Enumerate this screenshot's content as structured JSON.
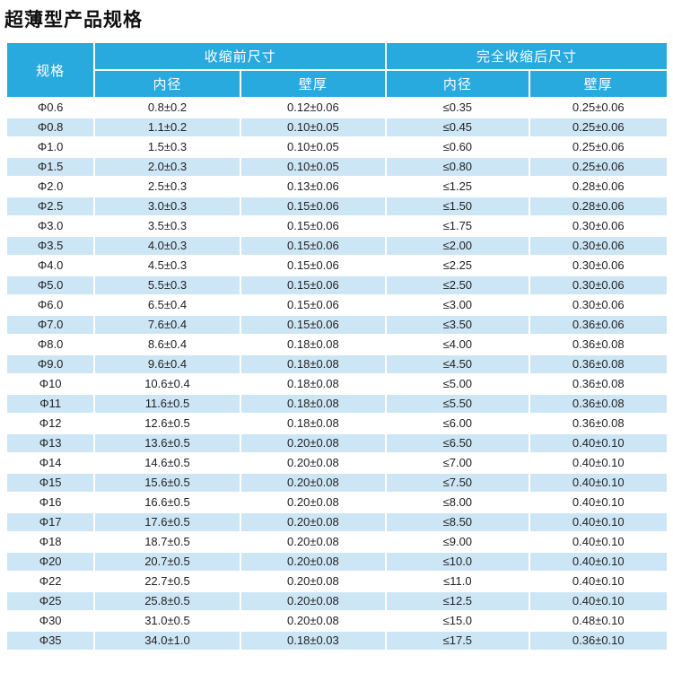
{
  "page_title": "超薄型产品规格",
  "colors": {
    "header_bg": "#29aade",
    "header_text": "#ffffff",
    "row_alt_bg": "#cde6f6",
    "row_bg": "#ffffff",
    "body_text": "#222222",
    "title_text": "#111111"
  },
  "table": {
    "header": {
      "spec": "规格",
      "before_group": "收缩前尺寸",
      "after_group": "完全收缩后尺寸",
      "before_inner_diameter": "内径",
      "before_wall_thickness": "壁厚",
      "after_inner_diameter": "内径",
      "after_wall_thickness": "壁厚"
    },
    "rows": [
      [
        "Φ0.6",
        "0.8±0.2",
        "0.12±0.06",
        "≤0.35",
        "0.25±0.06"
      ],
      [
        "Φ0.8",
        "1.1±0.2",
        "0.10±0.05",
        "≤0.45",
        "0.25±0.06"
      ],
      [
        "Φ1.0",
        "1.5±0.3",
        "0.10±0.05",
        "≤0.60",
        "0.25±0.06"
      ],
      [
        "Φ1.5",
        "2.0±0.3",
        "0.10±0.05",
        "≤0.80",
        "0.25±0.06"
      ],
      [
        "Φ2.0",
        "2.5±0.3",
        "0.13±0.06",
        "≤1.25",
        "0.28±0.06"
      ],
      [
        "Φ2.5",
        "3.0±0.3",
        "0.15±0.06",
        "≤1.50",
        "0.28±0.06"
      ],
      [
        "Φ3.0",
        "3.5±0.3",
        "0.15±0.06",
        "≤1.75",
        "0.30±0.06"
      ],
      [
        "Φ3.5",
        "4.0±0.3",
        "0.15±0.06",
        "≤2.00",
        "0.30±0.06"
      ],
      [
        "Φ4.0",
        "4.5±0.3",
        "0.15±0.06",
        "≤2.25",
        "0.30±0.06"
      ],
      [
        "Φ5.0",
        "5.5±0.3",
        "0.15±0.06",
        "≤2.50",
        "0.30±0.06"
      ],
      [
        "Φ6.0",
        "6.5±0.4",
        "0.15±0.06",
        "≤3.00",
        "0.30±0.06"
      ],
      [
        "Φ7.0",
        "7.6±0.4",
        "0.15±0.06",
        "≤3.50",
        "0.36±0.06"
      ],
      [
        "Φ8.0",
        "8.6±0.4",
        "0.18±0.08",
        "≤4.00",
        "0.36±0.08"
      ],
      [
        "Φ9.0",
        "9.6±0.4",
        "0.18±0.08",
        "≤4.50",
        "0.36±0.08"
      ],
      [
        "Φ10",
        "10.6±0.4",
        "0.18±0.08",
        "≤5.00",
        "0.36±0.08"
      ],
      [
        "Φ11",
        "11.6±0.5",
        "0.18±0.08",
        "≤5.50",
        "0.36±0.08"
      ],
      [
        "Φ12",
        "12.6±0.5",
        "0.18±0.08",
        "≤6.00",
        "0.36±0.08"
      ],
      [
        "Φ13",
        "13.6±0.5",
        "0.20±0.08",
        "≤6.50",
        "0.40±0.10"
      ],
      [
        "Φ14",
        "14.6±0.5",
        "0.20±0.08",
        "≤7.00",
        "0.40±0.10"
      ],
      [
        "Φ15",
        "15.6±0.5",
        "0.20±0.08",
        "≤7.50",
        "0.40±0.10"
      ],
      [
        "Φ16",
        "16.6±0.5",
        "0.20±0.08",
        "≤8.00",
        "0.40±0.10"
      ],
      [
        "Φ17",
        "17.6±0.5",
        "0.20±0.08",
        "≤8.50",
        "0.40±0.10"
      ],
      [
        "Φ18",
        "18.7±0.5",
        "0.20±0.08",
        "≤9.00",
        "0.40±0.10"
      ],
      [
        "Φ20",
        "20.7±0.5",
        "0.20±0.08",
        "≤10.0",
        "0.40±0.10"
      ],
      [
        "Φ22",
        "22.7±0.5",
        "0.20±0.08",
        "≤11.0",
        "0.40±0.10"
      ],
      [
        "Φ25",
        "25.8±0.5",
        "0.20±0.08",
        "≤12.5",
        "0.40±0.10"
      ],
      [
        "Φ30",
        "31.0±0.5",
        "0.20±0.08",
        "≤15.0",
        "0.48±0.10"
      ],
      [
        "Φ35",
        "34.0±1.0",
        "0.18±0.03",
        "≤17.5",
        "0.36±0.10"
      ]
    ]
  }
}
